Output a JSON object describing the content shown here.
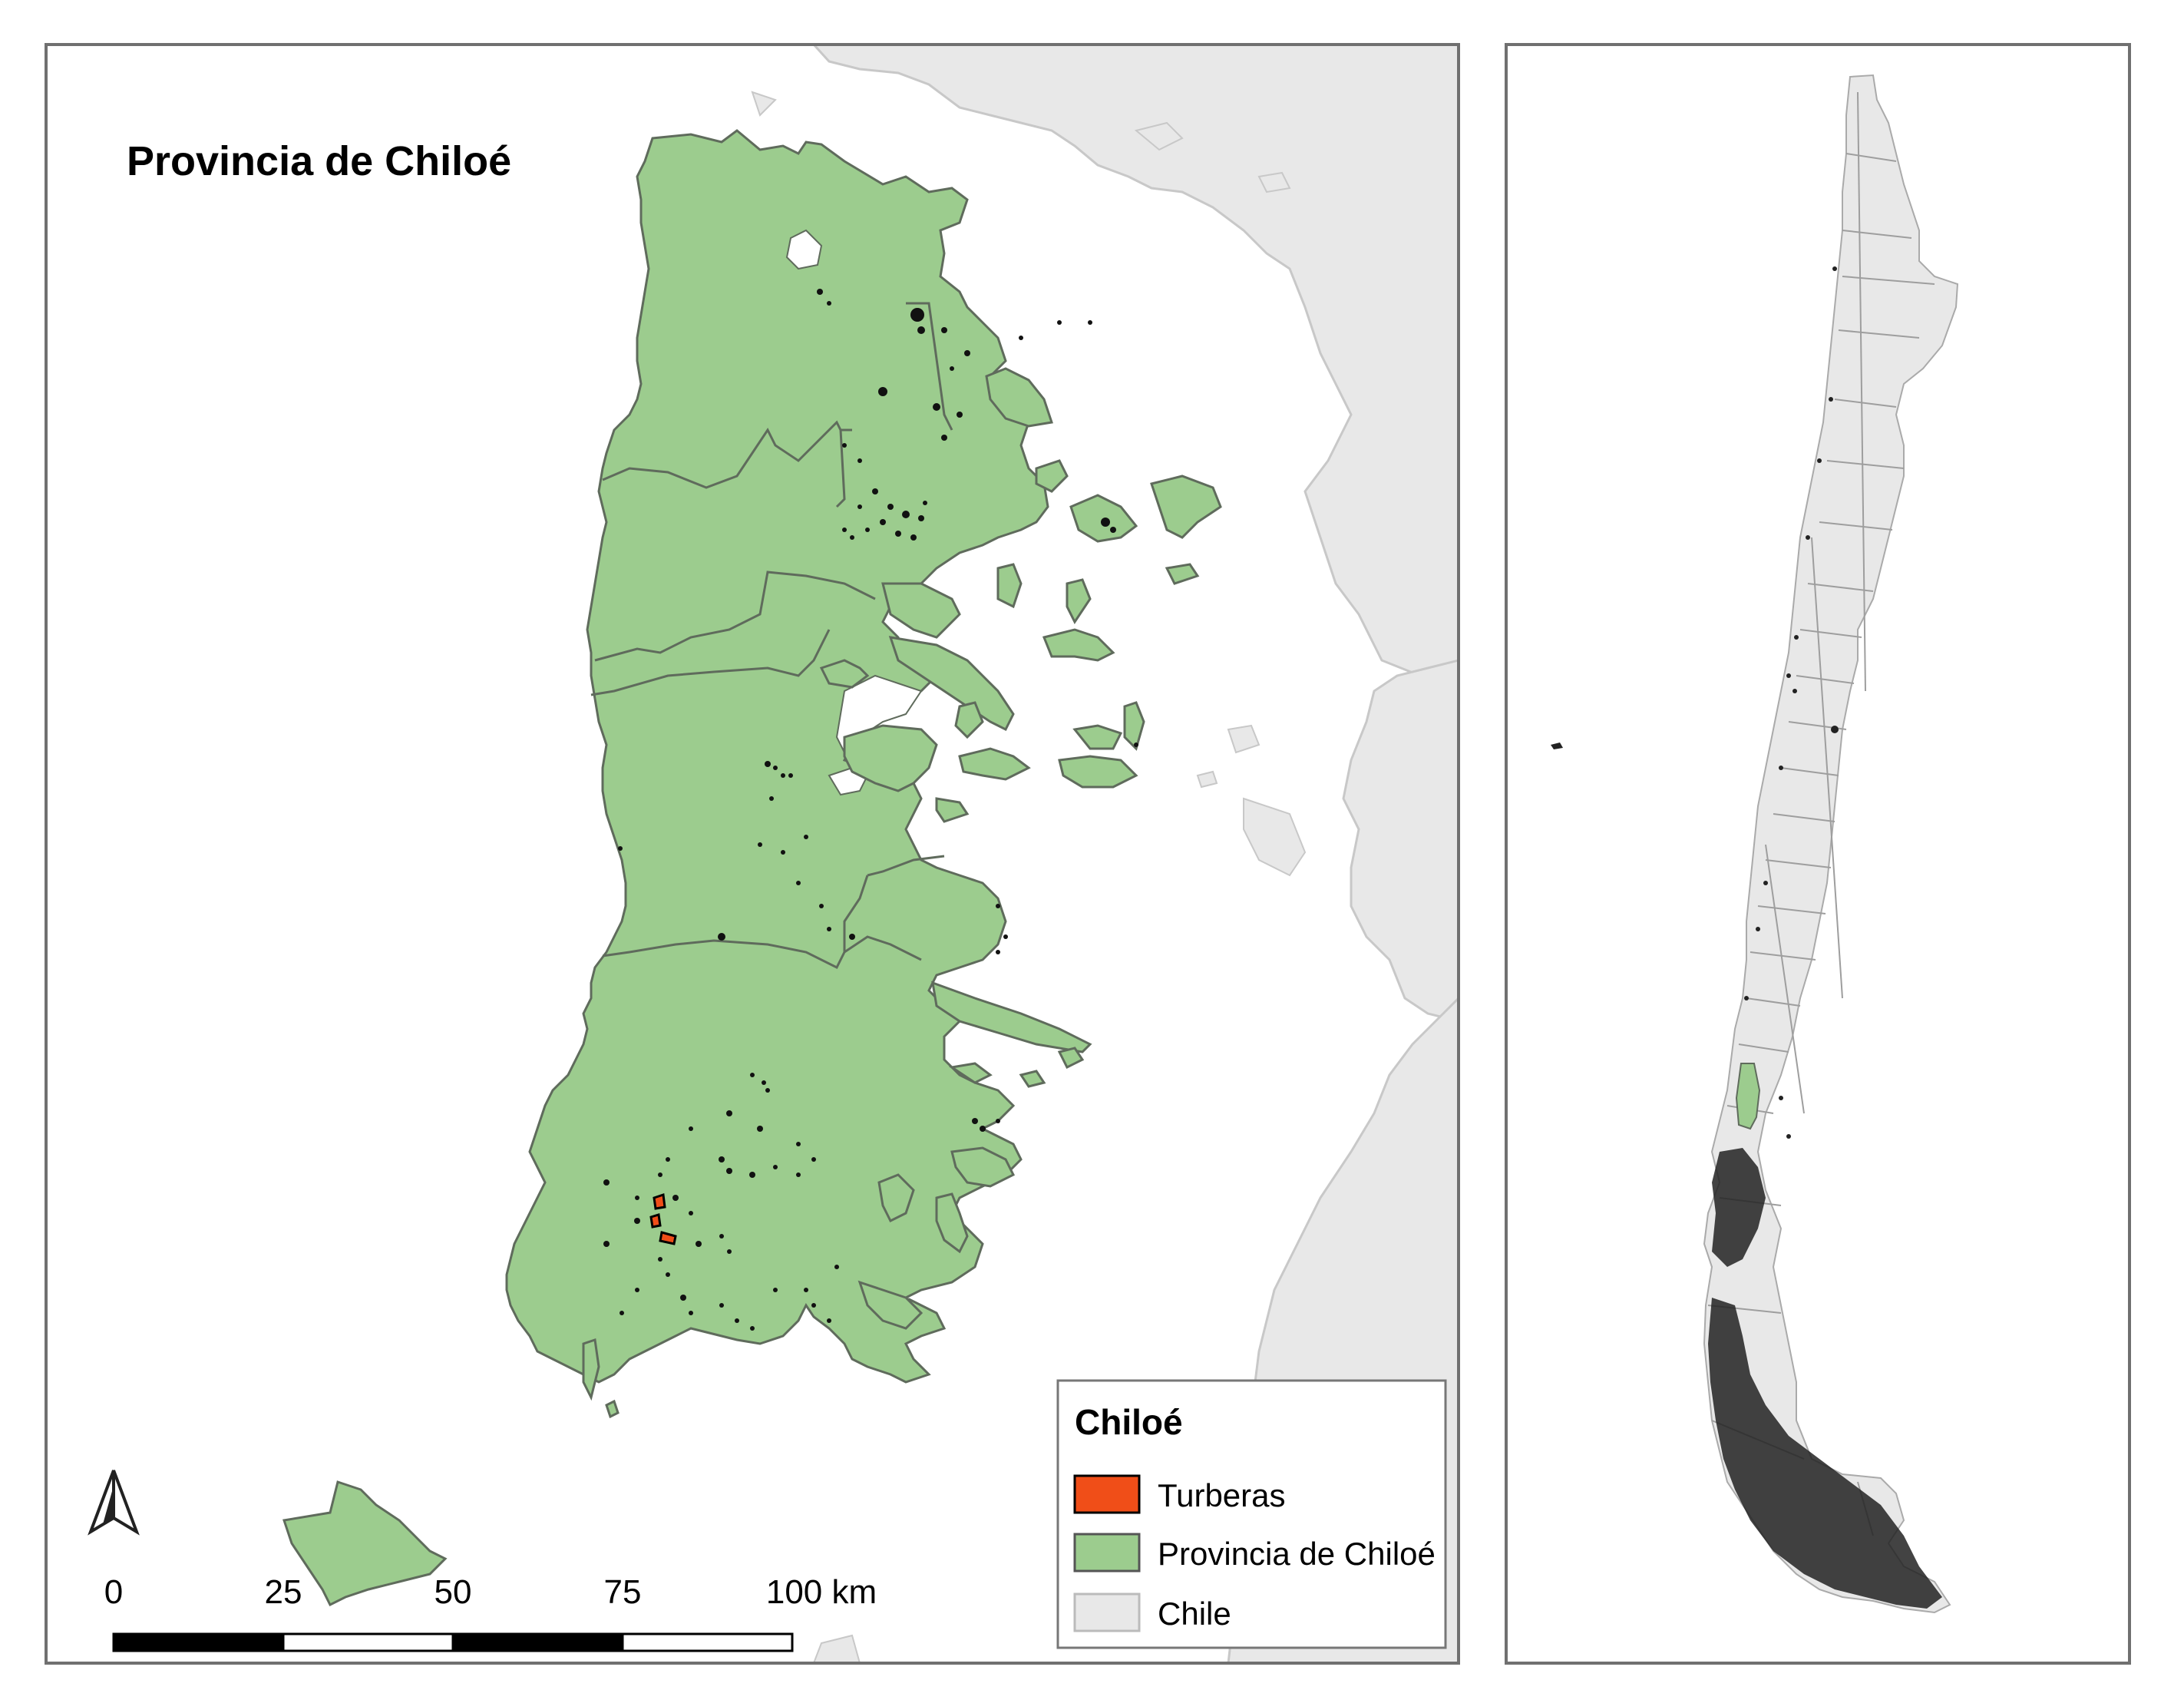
{
  "map": {
    "title": "Provincia de Chiloé",
    "north_arrow_icon": "north-arrow-icon",
    "scale_bar": {
      "ticks": [
        "0",
        "25",
        "50",
        "75",
        "100 km"
      ],
      "max_km": 100
    },
    "legend": {
      "title": "Chiloé",
      "items": [
        {
          "label": "Turberas",
          "color": "#f04e18",
          "stroke": "#000000"
        },
        {
          "label": "Provincia de Chiloé",
          "color": "#9ccc8e",
          "stroke": "#555555"
        },
        {
          "label": "Chile",
          "color": "#e8e8e8",
          "stroke": "#bbbbbb"
        }
      ]
    }
  },
  "colors": {
    "province_fill": "#9ccc8e",
    "province_stroke": "#5f6b5c",
    "land_fill": "#e8e8e8",
    "land_stroke": "#c8c8c8",
    "peat": "#f04e18",
    "peat_dots": "#111111",
    "frame": "#707070"
  }
}
